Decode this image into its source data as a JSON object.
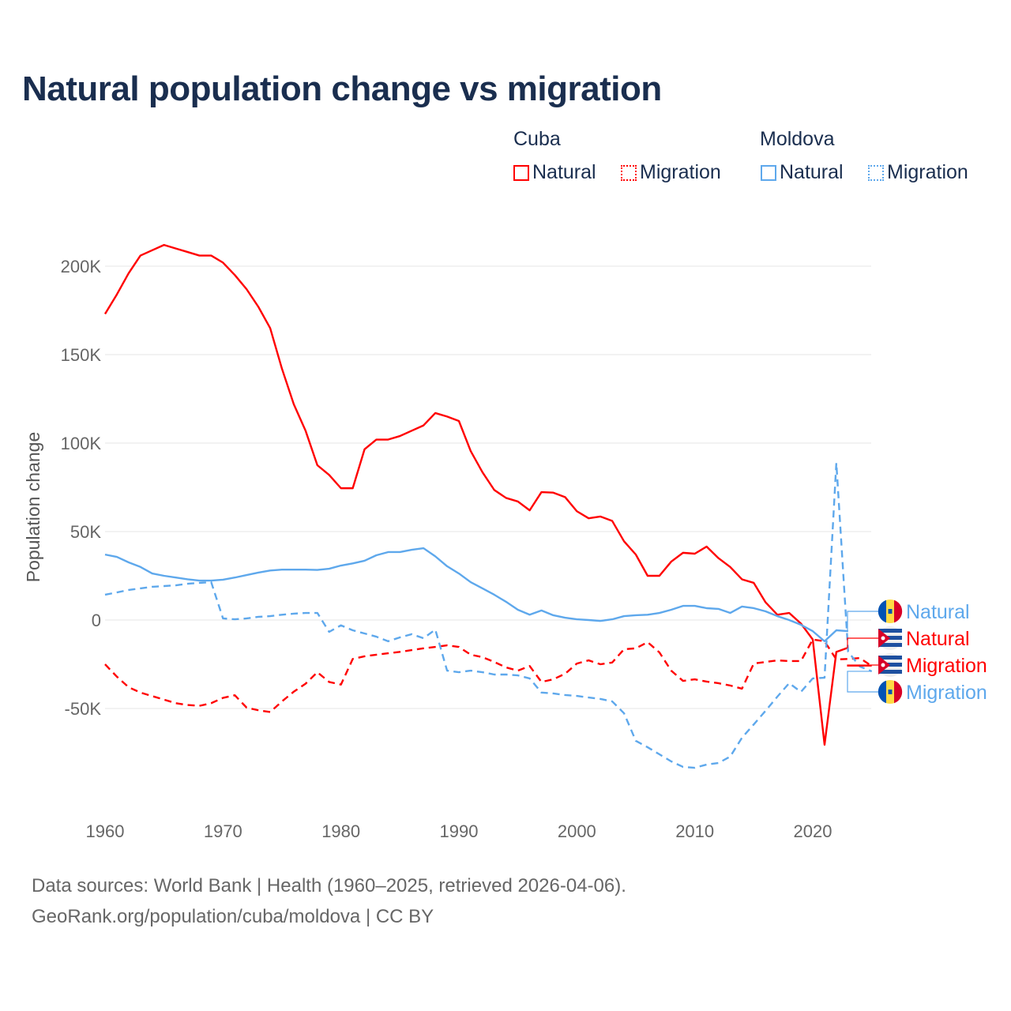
{
  "title": "Natural population change vs migration",
  "legend": {
    "groups": [
      {
        "name": "Cuba",
        "items": [
          {
            "label": "Natural",
            "style": "solid",
            "color": "#ff0000"
          },
          {
            "label": "Migration",
            "style": "dotted",
            "color": "#ff0000"
          }
        ]
      },
      {
        "name": "Moldova",
        "items": [
          {
            "label": "Natural",
            "style": "solid",
            "color": "#5ea8ec"
          },
          {
            "label": "Migration",
            "style": "dotted",
            "color": "#5ea8ec"
          }
        ]
      }
    ]
  },
  "end_labels": [
    {
      "label": "Natural",
      "country": "Moldova",
      "color": "#5ea8ec"
    },
    {
      "label": "Natural",
      "country": "Cuba",
      "color": "#ff0000"
    },
    {
      "label": "Migration",
      "country": "Cuba",
      "color": "#ff0000"
    },
    {
      "label": "Migration",
      "country": "Moldova",
      "color": "#5ea8ec"
    }
  ],
  "footer": {
    "line1": "Data sources: World Bank | Health (1960–2025, retrieved 2026-04-06).",
    "line2": "GeoRank.org/population/cuba/moldova | CC BY"
  },
  "chart_data": {
    "type": "line",
    "title": "Natural population change vs migration",
    "xlabel": "",
    "ylabel": "Population change",
    "xlim": [
      1960,
      2025
    ],
    "ylim": [
      -100000,
      215000
    ],
    "x_ticks": [
      1960,
      1970,
      1980,
      1990,
      2000,
      2010,
      2020
    ],
    "x_tick_labels": [
      "1960",
      "1970",
      "1980",
      "1990",
      "2000",
      "2010",
      "2020"
    ],
    "y_ticks": [
      -50000,
      0,
      50000,
      100000,
      150000,
      200000
    ],
    "y_tick_labels": [
      "-50K",
      "0",
      "50K",
      "100K",
      "150K",
      "200K"
    ],
    "grid": true,
    "legend_position": "top-right",
    "series": [
      {
        "name": "Cuba Natural",
        "color": "#ff0000",
        "dash": false,
        "start": 1960,
        "values": [
          173,
          184,
          196,
          206,
          209,
          212,
          210,
          208,
          206,
          206,
          202,
          195,
          187,
          177,
          165,
          142,
          122,
          107,
          87.5,
          82,
          74.5,
          74.5,
          96.5,
          102,
          102,
          104,
          107,
          110,
          117,
          115,
          112.5,
          95.5,
          83.5,
          73.5,
          69,
          67,
          62,
          72.3,
          72,
          69.5,
          61.5,
          57.5,
          58.5,
          56,
          44.5,
          37,
          25,
          25,
          33,
          38,
          37.5,
          41.5,
          35,
          30,
          23,
          21,
          10,
          3,
          4,
          -2,
          -11,
          -70.5,
          -18,
          -15.6
        ]
      },
      {
        "name": "Cuba Migration",
        "color": "#ff0000",
        "dash": true,
        "start": 1960,
        "values": [
          -25,
          -32,
          -38,
          -41,
          -43,
          -45,
          -47,
          -48,
          -48.5,
          -47,
          -44,
          -42.5,
          -49.5,
          -51,
          -52,
          -46,
          -40.5,
          -36,
          -29.5,
          -35,
          -36.5,
          -22,
          -20.5,
          -19.6,
          -18.8,
          -18,
          -17,
          -16,
          -15.2,
          -14.3,
          -15.2,
          -19.6,
          -21,
          -23.7,
          -26.8,
          -28.6,
          -26,
          -35,
          -33.5,
          -30.4,
          -24.6,
          -22.8,
          -25,
          -24,
          -16.5,
          -16,
          -12.5,
          -18.3,
          -28.6,
          -34.4,
          -33.5,
          -34.8,
          -35.7,
          -37,
          -38.8,
          -24.6,
          -23.7,
          -22.8,
          -23.2,
          -23.2,
          -11,
          -12,
          -22.3,
          -22,
          -21.5,
          -26
        ]
      },
      {
        "name": "Moldova Natural",
        "color": "#5ea8ec",
        "dash": false,
        "start": 1960,
        "values": [
          37,
          35.7,
          32.6,
          30,
          26.3,
          25,
          24,
          23,
          22.3,
          22.3,
          22.8,
          24,
          25.4,
          26.8,
          28,
          28.5,
          28.5,
          28.5,
          28.3,
          29,
          30.8,
          32,
          33.5,
          36.6,
          38.4,
          38.4,
          39.7,
          40.6,
          36,
          30.4,
          26.3,
          21.4,
          17.9,
          14.3,
          10.3,
          5.8,
          3,
          5.4,
          2.7,
          1.3,
          0.4,
          0,
          -0.5,
          0.4,
          2.2,
          2.7,
          3,
          4,
          5.8,
          8,
          8,
          6.7,
          6.3,
          4,
          7.6,
          6.7,
          4.9,
          2.2,
          0,
          -2.7,
          -6.3,
          -12,
          -5.8,
          -6.3
        ]
      },
      {
        "name": "Moldova Migration",
        "color": "#5ea8ec",
        "dash": true,
        "start": 1960,
        "values": [
          14.3,
          15.6,
          17,
          17.9,
          18.8,
          19.2,
          19.6,
          20.5,
          21,
          21.4,
          0.9,
          0.4,
          0.9,
          1.8,
          2.2,
          3,
          3.6,
          4,
          4,
          -6.7,
          -3,
          -5.8,
          -7.6,
          -9.4,
          -12,
          -9.8,
          -8,
          -10.3,
          -5.4,
          -28.6,
          -29.5,
          -28.6,
          -29.5,
          -30.8,
          -30.8,
          -31.3,
          -33,
          -41,
          -41.5,
          -42.4,
          -42.9,
          -43.8,
          -44.6,
          -46,
          -52.7,
          -68.3,
          -71.9,
          -75.9,
          -79.9,
          -83,
          -83.5,
          -81.7,
          -80.8,
          -77.2,
          -66.5,
          -59,
          -51.3,
          -43.3,
          -35.7,
          -40.6,
          -33,
          -32.6,
          88.8,
          -17.9,
          -26.3,
          -29
        ]
      }
    ],
    "values_unit": "thousands"
  }
}
